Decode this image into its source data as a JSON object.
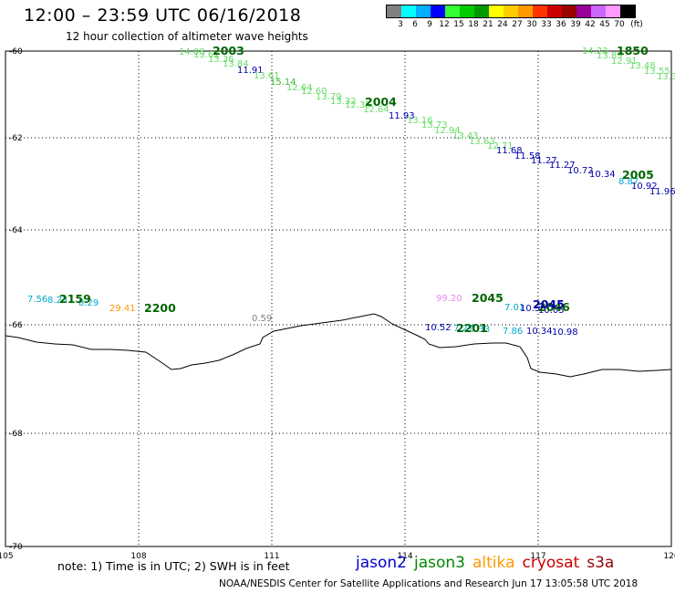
{
  "title": "12:00 – 23:59 UTC 06/16/2018",
  "subtitle": "12 hour collection of altimeter wave heights",
  "legend": {
    "unit": "(ft)",
    "colors": [
      "#808080",
      "#00ffff",
      "#00b0ff",
      "#0000ff",
      "#33ff33",
      "#00cc00",
      "#009900",
      "#ffff00",
      "#ffcc00",
      "#ff9900",
      "#ff3300",
      "#cc0000",
      "#990000",
      "#990099",
      "#cc66ff",
      "#ff99ff",
      "#000000"
    ],
    "labels": [
      "3",
      "6",
      "9",
      "12",
      "15",
      "18",
      "21",
      "24",
      "27",
      "30",
      "33",
      "36",
      "39",
      "42",
      "45",
      "70"
    ]
  },
  "axes": {
    "lat_labels": [
      "-60",
      "-62",
      "-64",
      "-66",
      "-68",
      "-70"
    ],
    "lon_labels": [
      "105",
      "108",
      "111",
      "114",
      "117",
      "120"
    ]
  },
  "track_times": [
    {
      "text": "2003",
      "color": "#006600"
    },
    {
      "text": "2004",
      "color": "#006600"
    },
    {
      "text": "1850",
      "color": "#006600"
    },
    {
      "text": "2005",
      "color": "#006600"
    },
    {
      "text": "2159",
      "color": "#006600"
    },
    {
      "text": "2200",
      "color": "#006600"
    },
    {
      "text": "2045",
      "color": "#006600"
    },
    {
      "text": "2046",
      "color": "#006600"
    },
    {
      "text": "2201",
      "color": "#006600"
    },
    {
      "text": "2045",
      "color": "#0000aa"
    }
  ],
  "values": [
    {
      "text": "14.08",
      "color": "#66dd66"
    },
    {
      "text": "13.62",
      "color": "#66dd66"
    },
    {
      "text": "13.36",
      "color": "#66dd66"
    },
    {
      "text": "13.84",
      "color": "#66dd66"
    },
    {
      "text": "11.91",
      "color": "#0000aa"
    },
    {
      "text": "13.61",
      "color": "#66dd66"
    },
    {
      "text": "15.14",
      "color": "#33bb33"
    },
    {
      "text": "12.64",
      "color": "#66dd66"
    },
    {
      "text": "12.60",
      "color": "#66dd66"
    },
    {
      "text": "13.79",
      "color": "#66dd66"
    },
    {
      "text": "13.32",
      "color": "#66dd66"
    },
    {
      "text": "12.35",
      "color": "#66dd66"
    },
    {
      "text": "12.64",
      "color": "#66dd66"
    },
    {
      "text": "11.93",
      "color": "#0000aa"
    },
    {
      "text": "13.16",
      "color": "#66dd66"
    },
    {
      "text": "13.73",
      "color": "#66dd66"
    },
    {
      "text": "12.94",
      "color": "#66dd66"
    },
    {
      "text": "13.43",
      "color": "#66dd66"
    },
    {
      "text": "13.63",
      "color": "#66dd66"
    },
    {
      "text": "12.71",
      "color": "#66dd66"
    },
    {
      "text": "11.68",
      "color": "#0000aa"
    },
    {
      "text": "11.58",
      "color": "#0000aa"
    },
    {
      "text": "11.27",
      "color": "#0000aa"
    },
    {
      "text": "11.27",
      "color": "#0000aa"
    },
    {
      "text": "10.72",
      "color": "#0000aa"
    },
    {
      "text": "10.34",
      "color": "#0000aa"
    },
    {
      "text": "8.87",
      "color": "#00aacc"
    },
    {
      "text": "10.92",
      "color": "#0000aa"
    },
    {
      "text": "11.96",
      "color": "#0000aa"
    },
    {
      "text": "14.23",
      "color": "#66dd66"
    },
    {
      "text": "13.89",
      "color": "#66dd66"
    },
    {
      "text": "12.91",
      "color": "#66dd66"
    },
    {
      "text": "13.48",
      "color": "#66dd66"
    },
    {
      "text": "13.55",
      "color": "#66dd66"
    },
    {
      "text": "13.3",
      "color": "#66dd66"
    },
    {
      "text": "7.56",
      "color": "#00aacc"
    },
    {
      "text": "8.23",
      "color": "#00aacc"
    },
    {
      "text": "8.29",
      "color": "#00aacc"
    },
    {
      "text": "29.41",
      "color": "#ff9900"
    },
    {
      "text": "0.59",
      "color": "#808080"
    },
    {
      "text": "99.20",
      "color": "#ee88ee"
    },
    {
      "text": "10.52",
      "color": "#0000aa"
    },
    {
      "text": "7.27",
      "color": "#00aacc"
    },
    {
      "text": "7.33",
      "color": "#00aacc"
    },
    {
      "text": "7.86",
      "color": "#00aacc"
    },
    {
      "text": "10.34",
      "color": "#0000aa"
    },
    {
      "text": "10.98",
      "color": "#0000aa"
    },
    {
      "text": "7.01",
      "color": "#00aacc"
    },
    {
      "text": "10.58",
      "color": "#0000aa"
    },
    {
      "text": "10.05",
      "color": "#0000aa"
    }
  ],
  "note": "note: 1) Time is in UTC; 2) SWH is in feet",
  "satellites": [
    {
      "name": "jason2",
      "color": "#0000cc"
    },
    {
      "name": "jason3",
      "color": "#008800"
    },
    {
      "name": "altika",
      "color": "#ff9900"
    },
    {
      "name": "cryosat",
      "color": "#cc0000"
    },
    {
      "name": "s3a",
      "color": "#990000"
    }
  ],
  "footer": "NOAA/NESDIS Center for Satellite Applications and Research    Jun 17 13:05:58 UTC 2018"
}
